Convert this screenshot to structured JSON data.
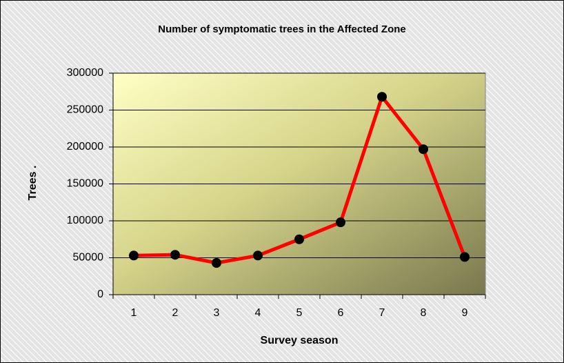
{
  "chart_data": {
    "type": "line",
    "title": "Number of symptomatic trees in the Affected Zone",
    "x_label": "Survey season",
    "y_label": "Trees  .",
    "categories": [
      1,
      2,
      3,
      4,
      5,
      6,
      7,
      8,
      9
    ],
    "series": [
      {
        "name": "Trees",
        "color": "#ff0000",
        "marker_color": "#000000",
        "values": [
          53000,
          54000,
          43000,
          53000,
          75000,
          98000,
          268000,
          197000,
          51000
        ]
      }
    ],
    "ylim": [
      0,
      300000
    ],
    "yticks": [
      0,
      50000,
      100000,
      150000,
      200000,
      250000,
      300000
    ],
    "grid": true
  }
}
